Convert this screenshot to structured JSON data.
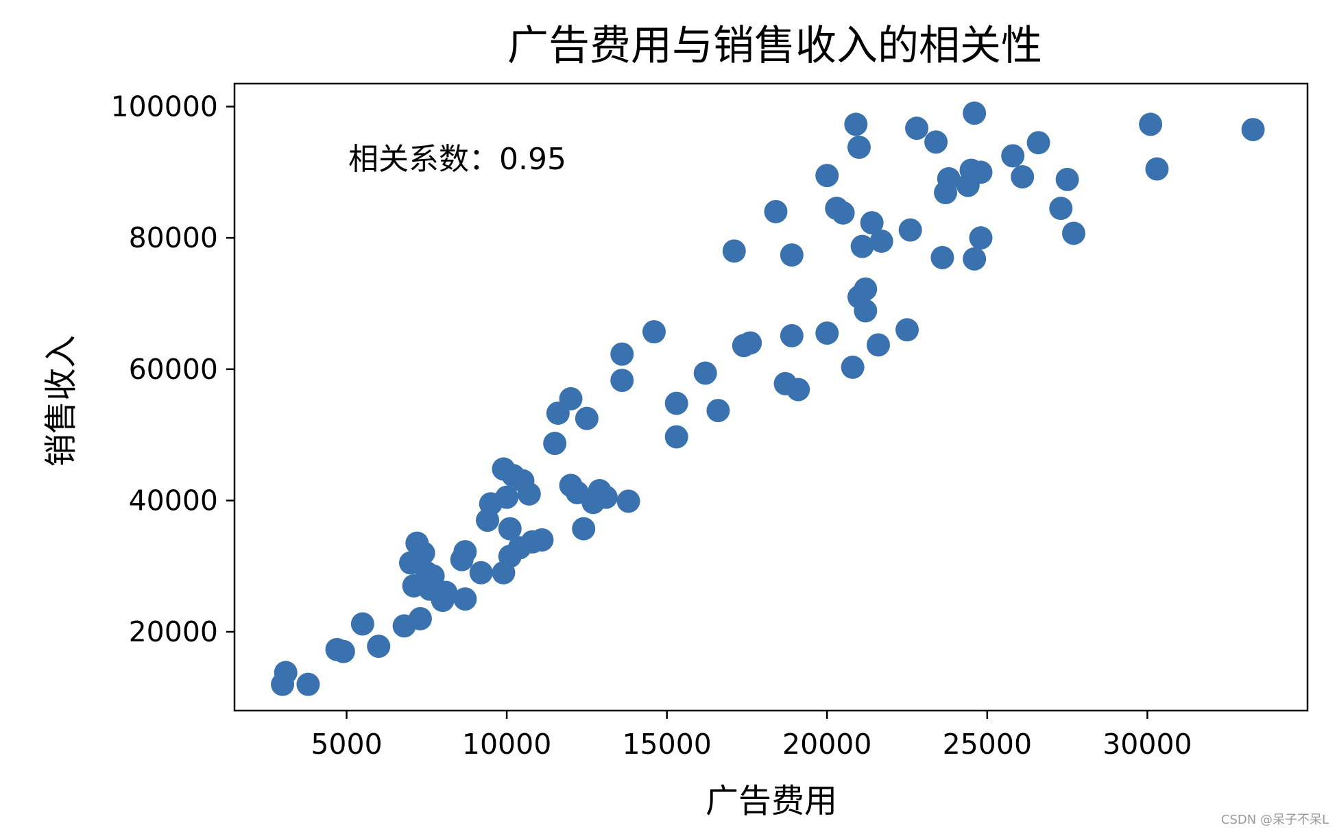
{
  "chart_data": {
    "type": "scatter",
    "title": "广告费用与销售收入的相关性",
    "xlabel": "广告费用",
    "ylabel": "销售收入",
    "xlim": [
      1500,
      35000
    ],
    "ylim": [
      8000,
      103500
    ],
    "xticks": [
      5000,
      10000,
      15000,
      20000,
      25000,
      30000
    ],
    "yticks": [
      20000,
      40000,
      60000,
      80000,
      100000
    ],
    "grid": false,
    "marker_color": "#3a72b0",
    "annotation": "相关系数：0.95",
    "points": [
      [
        3000,
        12000
      ],
      [
        3100,
        13800
      ],
      [
        3800,
        12000
      ],
      [
        4700,
        17300
      ],
      [
        4900,
        17000
      ],
      [
        5500,
        21200
      ],
      [
        6000,
        17800
      ],
      [
        6800,
        20900
      ],
      [
        7000,
        30500
      ],
      [
        7100,
        27000
      ],
      [
        7200,
        33500
      ],
      [
        7300,
        22000
      ],
      [
        7400,
        32000
      ],
      [
        7500,
        29000
      ],
      [
        7600,
        26500
      ],
      [
        7700,
        28500
      ],
      [
        8000,
        24800
      ],
      [
        8100,
        26000
      ],
      [
        8600,
        31000
      ],
      [
        8700,
        32200
      ],
      [
        8700,
        25000
      ],
      [
        9200,
        29000
      ],
      [
        9400,
        37000
      ],
      [
        9500,
        39500
      ],
      [
        9900,
        44800
      ],
      [
        9900,
        29000
      ],
      [
        10000,
        40500
      ],
      [
        10100,
        35700
      ],
      [
        10100,
        31500
      ],
      [
        10200,
        43800
      ],
      [
        10400,
        32800
      ],
      [
        10500,
        43000
      ],
      [
        10700,
        41000
      ],
      [
        10800,
        33700
      ],
      [
        11100,
        34000
      ],
      [
        11500,
        48700
      ],
      [
        11600,
        53300
      ],
      [
        12000,
        42300
      ],
      [
        12000,
        55500
      ],
      [
        12200,
        41200
      ],
      [
        12400,
        35700
      ],
      [
        12500,
        52500
      ],
      [
        12700,
        39700
      ],
      [
        12900,
        41500
      ],
      [
        13100,
        40500
      ],
      [
        13600,
        62300
      ],
      [
        13600,
        58300
      ],
      [
        13800,
        39900
      ],
      [
        14600,
        65700
      ],
      [
        15300,
        54800
      ],
      [
        15300,
        49700
      ],
      [
        16200,
        59400
      ],
      [
        16600,
        53700
      ],
      [
        17100,
        78000
      ],
      [
        17400,
        63600
      ],
      [
        17600,
        64000
      ],
      [
        18400,
        84000
      ],
      [
        18700,
        57800
      ],
      [
        18900,
        77400
      ],
      [
        18900,
        65100
      ],
      [
        19100,
        56900
      ],
      [
        20000,
        89500
      ],
      [
        20000,
        65500
      ],
      [
        20300,
        84500
      ],
      [
        20500,
        83800
      ],
      [
        20800,
        60300
      ],
      [
        20900,
        97300
      ],
      [
        21000,
        71000
      ],
      [
        21000,
        93800
      ],
      [
        21100,
        78700
      ],
      [
        21200,
        68900
      ],
      [
        21200,
        72200
      ],
      [
        21400,
        82300
      ],
      [
        21600,
        63700
      ],
      [
        21700,
        79500
      ],
      [
        22500,
        66000
      ],
      [
        22600,
        81200
      ],
      [
        22800,
        96700
      ],
      [
        23400,
        94600
      ],
      [
        23600,
        77000
      ],
      [
        23700,
        86900
      ],
      [
        23800,
        89000
      ],
      [
        24400,
        88000
      ],
      [
        24500,
        90300
      ],
      [
        24600,
        76800
      ],
      [
        24600,
        99000
      ],
      [
        24800,
        80000
      ],
      [
        24800,
        90000
      ],
      [
        25800,
        92500
      ],
      [
        26100,
        89300
      ],
      [
        26600,
        94500
      ],
      [
        27300,
        84500
      ],
      [
        27500,
        88900
      ],
      [
        27700,
        80700
      ],
      [
        30100,
        97300
      ],
      [
        30300,
        90500
      ],
      [
        33300,
        96500
      ]
    ]
  },
  "watermark": "CSDN @呆子不呆L"
}
